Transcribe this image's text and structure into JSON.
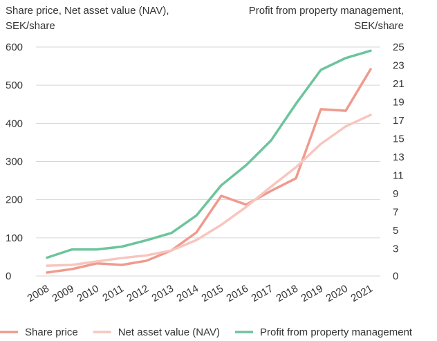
{
  "chart_data": {
    "type": "line",
    "y_axis_label": [
      "Share price, Net asset value (NAV),",
      "SEK/share"
    ],
    "y2_axis_label": [
      "Profit from property management,",
      "SEK/share"
    ],
    "x": [
      "2008",
      "2009",
      "2010",
      "2011",
      "2012",
      "2013",
      "2014",
      "2015",
      "2016",
      "2017",
      "2018",
      "2019",
      "2020",
      "2021"
    ],
    "series": [
      {
        "name": "Share price",
        "color": "#ef9a8e",
        "values": [
          9,
          18,
          33,
          29,
          40,
          67,
          114,
          210,
          187,
          223,
          256,
          437,
          433,
          542
        ]
      },
      {
        "name": "Net asset value (NAV)",
        "color": "#f7c6be",
        "values": [
          27,
          29,
          38,
          47,
          54,
          67,
          94,
          134,
          181,
          234,
          285,
          346,
          392,
          422
        ]
      },
      {
        "name": "Profit from property management",
        "color": "#6cc49c",
        "axis": "y2",
        "values": [
          2.0,
          2.9,
          2.9,
          3.2,
          3.9,
          4.7,
          6.6,
          9.9,
          12.1,
          14.8,
          18.8,
          22.5,
          23.8,
          24.6
        ]
      }
    ],
    "ylim": [
      0,
      600
    ],
    "yticks": [
      0,
      100,
      200,
      300,
      400,
      500,
      600
    ],
    "y2lim": [
      0,
      25
    ],
    "y2ticks": [
      0,
      3,
      5,
      7,
      9,
      11,
      13,
      15,
      17,
      19,
      21,
      23,
      25
    ],
    "grid": true,
    "legend": "bottom"
  }
}
